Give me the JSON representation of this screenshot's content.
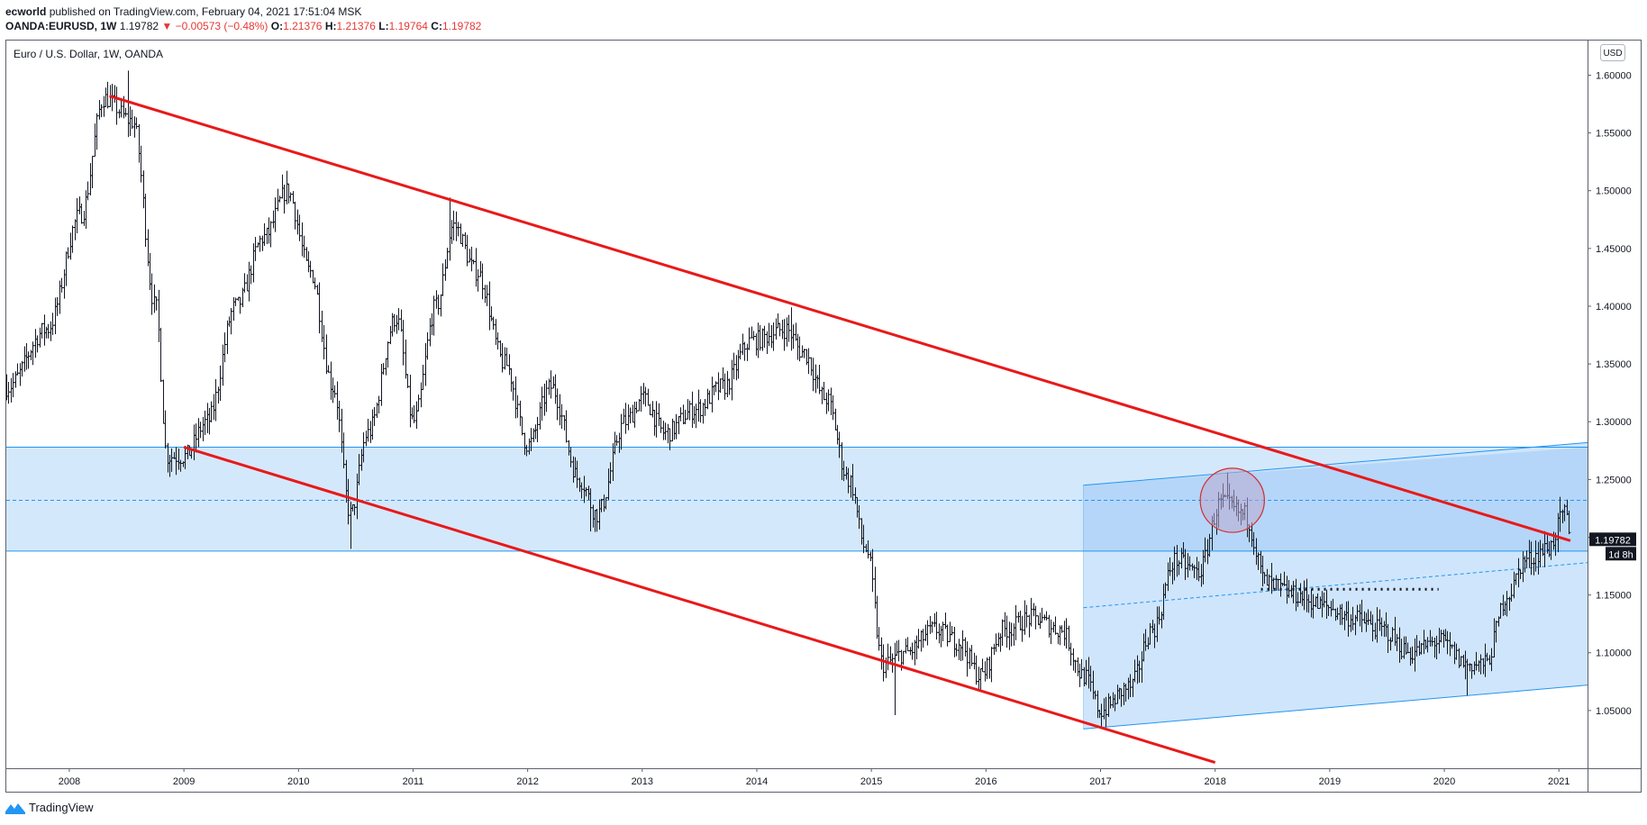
{
  "header": {
    "author": "ecworld",
    "published_text": "published on TradingView.com, February 04, 2021 17:51:04 MSK",
    "symbol": "OANDA:EURUSD, 1W",
    "last": "1.19782",
    "change_arrow": "▼",
    "change": "−0.00573 (−0.48%)",
    "o_label": "O:",
    "o_value": "1.21376",
    "h_label": "H:",
    "h_value": "1.21376",
    "l_label": "L:",
    "l_value": "1.19764",
    "c_label": "C:",
    "c_value": "1.19782"
  },
  "footer": {
    "brand": "TradingView"
  },
  "colors": {
    "candle": "#131722",
    "trendline": "#e8191a",
    "zone_fill": "#d4e8fb",
    "zone_line": "#2196f3",
    "channel_fill": "#cfe5fb",
    "overlap_fill": "#a9d0f7",
    "circle_fill": "#b9a9cf",
    "circle_stroke": "#d32f2f",
    "price_label_bg": "#131722",
    "negative": "#e53935"
  },
  "chart_data": {
    "type": "candlestick",
    "title": "Euro / U.S. Dollar, 1W, OANDA",
    "currency_badge": "USD",
    "ylim": [
      1.0,
      1.63
    ],
    "xlim": [
      2007.45,
      2021.25
    ],
    "x_ticks": [
      2008,
      2009,
      2010,
      2011,
      2012,
      2013,
      2014,
      2015,
      2016,
      2017,
      2018,
      2019,
      2020,
      2021
    ],
    "y_ticks": [
      "1.05000",
      "1.10000",
      "1.15000",
      "1.20000",
      "1.25000",
      "1.30000",
      "1.35000",
      "1.40000",
      "1.45000",
      "1.50000",
      "1.55000",
      "1.60000"
    ],
    "price_anchors": [
      [
        2007.45,
        1.33
      ],
      [
        2007.8,
        1.38
      ],
      [
        2008.1,
        1.48
      ],
      [
        2008.3,
        1.58
      ],
      [
        2008.55,
        1.56
      ],
      [
        2008.75,
        1.4
      ],
      [
        2008.85,
        1.27
      ],
      [
        2009.0,
        1.27
      ],
      [
        2009.2,
        1.3
      ],
      [
        2009.45,
        1.4
      ],
      [
        2009.7,
        1.46
      ],
      [
        2009.9,
        1.5
      ],
      [
        2010.1,
        1.43
      ],
      [
        2010.3,
        1.33
      ],
      [
        2010.45,
        1.22
      ],
      [
        2010.6,
        1.29
      ],
      [
        2010.85,
        1.39
      ],
      [
        2011.0,
        1.3
      ],
      [
        2011.2,
        1.4
      ],
      [
        2011.35,
        1.47
      ],
      [
        2011.55,
        1.43
      ],
      [
        2011.8,
        1.35
      ],
      [
        2012.0,
        1.28
      ],
      [
        2012.2,
        1.33
      ],
      [
        2012.45,
        1.25
      ],
      [
        2012.6,
        1.22
      ],
      [
        2012.85,
        1.3
      ],
      [
        2013.0,
        1.32
      ],
      [
        2013.2,
        1.29
      ],
      [
        2013.45,
        1.31
      ],
      [
        2013.7,
        1.33
      ],
      [
        2013.95,
        1.37
      ],
      [
        2014.25,
        1.38
      ],
      [
        2014.4,
        1.36
      ],
      [
        2014.6,
        1.32
      ],
      [
        2014.8,
        1.25
      ],
      [
        2014.95,
        1.19
      ],
      [
        2015.1,
        1.09
      ],
      [
        2015.3,
        1.1
      ],
      [
        2015.55,
        1.12
      ],
      [
        2015.75,
        1.11
      ],
      [
        2015.95,
        1.08
      ],
      [
        2016.15,
        1.12
      ],
      [
        2016.4,
        1.13
      ],
      [
        2016.65,
        1.12
      ],
      [
        2016.85,
        1.08
      ],
      [
        2017.0,
        1.05
      ],
      [
        2017.25,
        1.07
      ],
      [
        2017.45,
        1.12
      ],
      [
        2017.65,
        1.18
      ],
      [
        2017.85,
        1.17
      ],
      [
        2018.05,
        1.23
      ],
      [
        2018.25,
        1.22
      ],
      [
        2018.45,
        1.16
      ],
      [
        2018.7,
        1.15
      ],
      [
        2018.95,
        1.14
      ],
      [
        2019.2,
        1.13
      ],
      [
        2019.45,
        1.12
      ],
      [
        2019.7,
        1.1
      ],
      [
        2019.95,
        1.11
      ],
      [
        2020.2,
        1.09
      ],
      [
        2020.35,
        1.09
      ],
      [
        2020.55,
        1.15
      ],
      [
        2020.7,
        1.18
      ],
      [
        2020.9,
        1.19
      ],
      [
        2021.05,
        1.22
      ],
      [
        2021.1,
        1.198
      ]
    ],
    "extremes": [
      [
        2008.5,
        1.604
      ],
      [
        2011.32,
        1.494
      ],
      [
        2014.3,
        1.399
      ],
      [
        2010.45,
        1.19
      ],
      [
        2012.55,
        1.205
      ],
      [
        2015.2,
        1.046
      ],
      [
        2017.0,
        1.034
      ],
      [
        2018.1,
        1.256
      ],
      [
        2020.2,
        1.063
      ],
      [
        2009.85,
        1.514
      ],
      [
        2021.0,
        1.235
      ]
    ],
    "annotations": {
      "trendline_top": [
        [
          2008.35,
          1.582
        ],
        [
          2021.1,
          1.197
        ]
      ],
      "trendline_bottom": [
        [
          2009.0,
          1.278
        ],
        [
          2018.0,
          1.005
        ]
      ],
      "horizontal_zone": {
        "top": 1.278,
        "mid": 1.232,
        "bottom": 1.188
      },
      "rising_channel": {
        "upper": [
          [
            2016.85,
            1.245
          ],
          [
            2021.25,
            1.282
          ]
        ],
        "mid": [
          [
            2016.85,
            1.139
          ],
          [
            2021.25,
            1.178
          ]
        ],
        "lower": [
          [
            2016.85,
            1.034
          ],
          [
            2021.25,
            1.072
          ]
        ]
      },
      "dotted_level": {
        "price": 1.155,
        "x": [
          2018.4,
          2019.95
        ]
      },
      "circle": {
        "center": [
          2018.15,
          1.232
        ],
        "radius_years": 0.28
      }
    },
    "last_price_label": "1.19782",
    "countdown_label": "1d 8h"
  }
}
